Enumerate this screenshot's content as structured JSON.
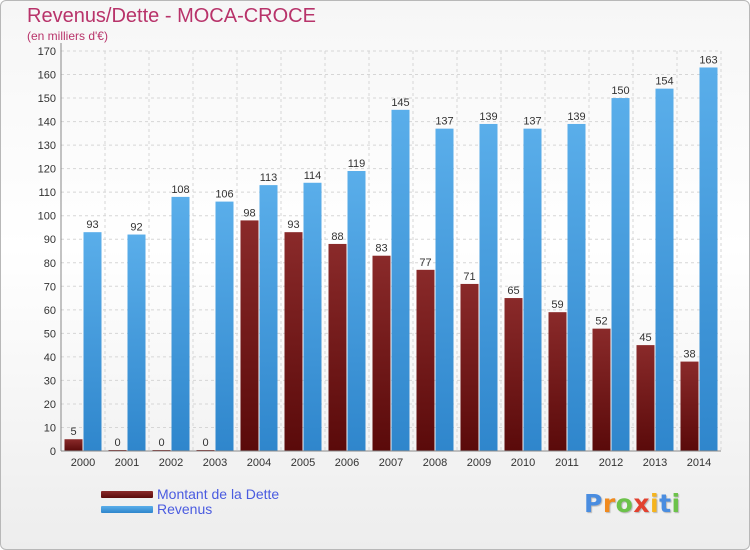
{
  "header": {
    "title": "Revenus/Dette - MOCA-CROCE",
    "subtitle": "(en milliers d'€)"
  },
  "legend": {
    "items": [
      {
        "label": "Montant de la Dette",
        "color": "#7a1a1a"
      },
      {
        "label": "Revenus",
        "color": "#4fa3e3"
      }
    ]
  },
  "logo": {
    "text": "Proxiti",
    "letters": [
      {
        "char": "P",
        "color": "#4a8de0"
      },
      {
        "char": "r",
        "color": "#f08a1e"
      },
      {
        "char": "o",
        "color": "#6cc24a"
      },
      {
        "char": "x",
        "color": "#e2412f"
      },
      {
        "char": "i",
        "color": "#f5b41e"
      },
      {
        "char": "t",
        "color": "#4a8de0"
      },
      {
        "char": "i",
        "color": "#6cc24a"
      }
    ]
  },
  "chart_data": {
    "type": "bar",
    "categories": [
      "2000",
      "2001",
      "2002",
      "2003",
      "2004",
      "2005",
      "2006",
      "2007",
      "2008",
      "2009",
      "2010",
      "2011",
      "2012",
      "2013",
      "2014"
    ],
    "series": [
      {
        "name": "Montant de la Dette",
        "color": "#7a1a1a",
        "values": [
          5,
          0,
          0,
          0,
          98,
          93,
          88,
          83,
          77,
          71,
          65,
          59,
          52,
          45,
          38
        ]
      },
      {
        "name": "Revenus",
        "color": "#4fa3e3",
        "values": [
          93,
          92,
          108,
          106,
          113,
          114,
          119,
          145,
          137,
          139,
          137,
          139,
          150,
          154,
          163
        ]
      }
    ],
    "ylim": [
      0,
      170
    ],
    "yticks": [
      0,
      10,
      20,
      30,
      40,
      50,
      60,
      70,
      80,
      90,
      100,
      110,
      120,
      130,
      140,
      150,
      160,
      170
    ],
    "grid": true,
    "legend_position": "bottom-left"
  }
}
